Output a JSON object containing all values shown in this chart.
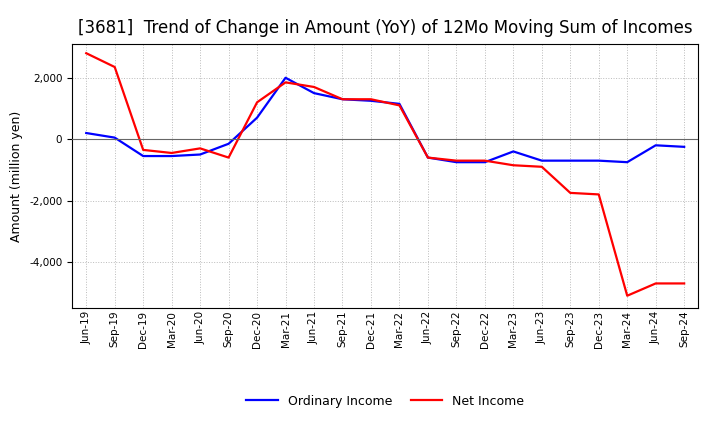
{
  "title": "[3681]  Trend of Change in Amount (YoY) of 12Mo Moving Sum of Incomes",
  "ylabel": "Amount (million yen)",
  "x_labels": [
    "Jun-19",
    "Sep-19",
    "Dec-19",
    "Mar-20",
    "Jun-20",
    "Sep-20",
    "Dec-20",
    "Mar-21",
    "Jun-21",
    "Sep-21",
    "Dec-21",
    "Mar-22",
    "Jun-22",
    "Sep-22",
    "Dec-22",
    "Mar-23",
    "Jun-23",
    "Sep-23",
    "Dec-23",
    "Mar-24",
    "Jun-24",
    "Sep-24"
  ],
  "ordinary_income": [
    200,
    50,
    -550,
    -550,
    -500,
    -150,
    700,
    2000,
    1500,
    1300,
    1250,
    1150,
    -600,
    -750,
    -750,
    -400,
    -700,
    -700,
    -700,
    -750,
    -200,
    -250
  ],
  "net_income": [
    2800,
    2350,
    -350,
    -450,
    -300,
    -600,
    1200,
    1850,
    1700,
    1300,
    1300,
    1100,
    -600,
    -700,
    -700,
    -850,
    -900,
    -1750,
    -1800,
    -5100,
    -4700,
    -4700
  ],
  "ordinary_color": "#0000ff",
  "net_color": "#ff0000",
  "background_color": "#ffffff",
  "grid_color": "#bbbbbb",
  "ylim": [
    -5500,
    3100
  ],
  "yticks": [
    -4000,
    -2000,
    0,
    2000
  ],
  "legend_labels": [
    "Ordinary Income",
    "Net Income"
  ],
  "line_width": 1.6,
  "title_fontsize": 12,
  "label_fontsize": 9,
  "tick_fontsize": 7.5
}
